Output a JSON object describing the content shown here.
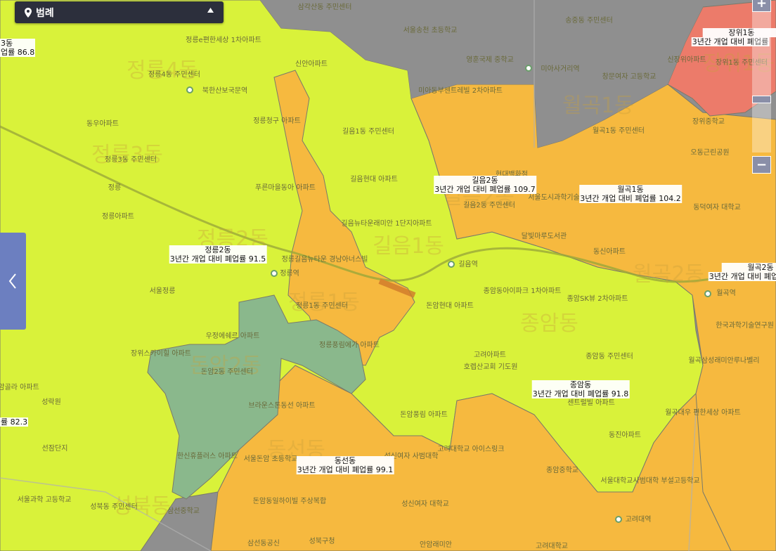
{
  "legend": {
    "title": "범례",
    "pin_icon": "map-pin-icon",
    "toggle_icon": "caret-up-icon"
  },
  "colors": {
    "yellow": "#d9f23a",
    "orange": "#f6b93f",
    "red": "#ec7b6a",
    "green": "#8ab88c",
    "road": "#8f8f8f"
  },
  "regions": [
    {
      "name": "길음2동",
      "value_label": "3년간 개업 대비 폐업률 109.7"
    },
    {
      "name": "월곡1동",
      "value_label": "3년간 개업 대비 폐업률 104.2"
    },
    {
      "name": "정릉2동",
      "value_label": "3년간 개업 대비 폐업률 91.5"
    },
    {
      "name": "종암동",
      "value_label": "3년간 개업 대비 폐업률 91.8"
    },
    {
      "name": "동선동",
      "value_label": "3년간 개업 대비 폐업률 99.1"
    },
    {
      "name": "장위1동",
      "value_label": "3년간 개업 대비 폐업률"
    },
    {
      "name": "월곡2동",
      "value_label": "3년간 개업 대비 폐업률"
    },
    {
      "name": "3동",
      "value_label": "업률 86.8"
    },
    {
      "name": "",
      "value_label": "률 82.3"
    }
  ],
  "pois": [
    "삼각산동 주민센터",
    "서울송천 초등학교",
    "영훈국제 중학교",
    "미아사거리역",
    "송중동 주민센터",
    "창문여자 고등학교",
    "신장위아파트",
    "장위1동 주민센터",
    "장위중학교",
    "오동근린공원",
    "월곡1동 주민센터",
    "동덕여자 대학교",
    "정릉e편한세상 1차아파트",
    "신안아파트",
    "정릉4동 주민센터",
    "북한산보국문역",
    "동우아파트",
    "정릉청구 아파트",
    "길음1동 주민센터",
    "정릉3동 주민센터",
    "정릉",
    "정릉아파트",
    "푸른마을동아 아파트",
    "길음현대 아파트",
    "길음뉴타운래미안 1단지아파트",
    "미아동부센트레빌 2차아파트",
    "현대백화점",
    "길음2동 주민센터",
    "서울도시과학기술 고등학교",
    "달빛마루도서관",
    "동신아파트",
    "정릉길음뉴타운 경남아너스빌",
    "정릉역",
    "길음역",
    "서울정릉",
    "정릉1동 주민센터",
    "돈암현대 아파트",
    "종암동아이파크 1차아파트",
    "종암SK뷰 2차아파트",
    "월곡역",
    "한국과학기술연구원 우체국",
    "우정에쉐르 아파트",
    "장위스카이힐 아파트",
    "정릉풍림에가 아파트",
    "돈암2동 주민센터",
    "고려아파트",
    "호렙산교회 기도원",
    "종암동 주민센터",
    "월곡삼성래미안루나벨리",
    "돈암골라 아파트",
    "성락원",
    "브라운스톤동선 아파트",
    "돈암풍림 아파트",
    "센트럴빌 아파트",
    "월곡대우 편한세상 아파트",
    "선잠단지",
    "한신휴플러스 아파트",
    "서울돈암 초등학교",
    "성신여자 사범대학",
    "고려대학교 아이스링크",
    "동진아파트",
    "종암중학교",
    "서울대학교사범대학 부설고등학교",
    "서울과학 고등학교",
    "성북동 주민센터",
    "삼선중학교",
    "돈암동일하이빌 주상복합",
    "성신여자 대학교",
    "고려대역",
    "삼선동공신",
    "성북구청",
    "안암래미안",
    "고려대학교"
  ],
  "controls": {
    "zoom_in": "+",
    "zoom_out": "−",
    "side_toggle_icon": "chevron-left-icon"
  }
}
